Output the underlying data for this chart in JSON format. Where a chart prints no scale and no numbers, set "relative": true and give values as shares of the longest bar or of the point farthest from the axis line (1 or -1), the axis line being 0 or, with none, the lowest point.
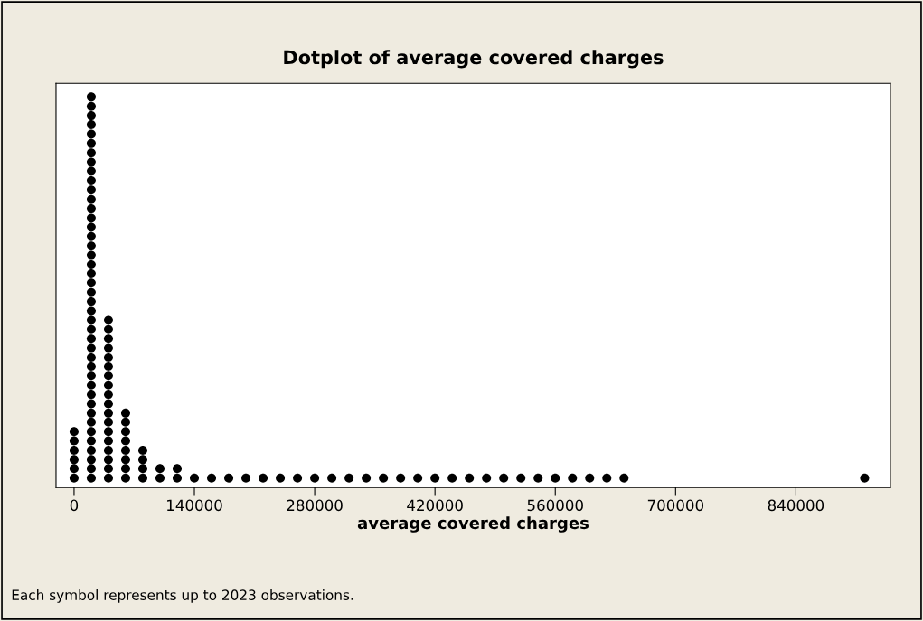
{
  "chart_data": {
    "type": "scatter",
    "title": "Dotplot of average covered charges",
    "xlabel": "average covered charges",
    "x": [
      0,
      0,
      0,
      0,
      0,
      0,
      20000,
      20000,
      20000,
      20000,
      20000,
      20000,
      20000,
      20000,
      20000,
      20000,
      20000,
      20000,
      20000,
      20000,
      20000,
      20000,
      20000,
      20000,
      20000,
      20000,
      20000,
      20000,
      20000,
      20000,
      20000,
      20000,
      20000,
      20000,
      20000,
      20000,
      20000,
      20000,
      20000,
      20000,
      20000,
      20000,
      20000,
      20000,
      20000,
      20000,
      20000,
      20000,
      40000,
      40000,
      40000,
      40000,
      40000,
      40000,
      40000,
      40000,
      40000,
      40000,
      40000,
      40000,
      40000,
      40000,
      40000,
      40000,
      40000,
      40000,
      60000,
      60000,
      60000,
      60000,
      60000,
      60000,
      60000,
      60000,
      80000,
      80000,
      80000,
      80000,
      100000,
      100000,
      120000,
      120000,
      140000,
      160000,
      180000,
      200000,
      220000,
      240000,
      260000,
      280000,
      300000,
      320000,
      340000,
      360000,
      380000,
      400000,
      420000,
      440000,
      460000,
      480000,
      500000,
      520000,
      540000,
      560000,
      580000,
      600000,
      620000,
      640000,
      920000
    ],
    "values": [
      0.024,
      0.048,
      0.071,
      0.095,
      0.119,
      0.143,
      0.024,
      0.048,
      0.071,
      0.095,
      0.119,
      0.143,
      0.167,
      0.19,
      0.214,
      0.238,
      0.262,
      0.286,
      0.31,
      0.333,
      0.357,
      0.381,
      0.405,
      0.429,
      0.452,
      0.476,
      0.5,
      0.524,
      0.548,
      0.571,
      0.595,
      0.619,
      0.643,
      0.667,
      0.69,
      0.714,
      0.738,
      0.762,
      0.786,
      0.81,
      0.833,
      0.857,
      0.881,
      0.905,
      0.929,
      0.952,
      0.976,
      1,
      0.024,
      0.048,
      0.071,
      0.095,
      0.119,
      0.143,
      0.167,
      0.19,
      0.214,
      0.238,
      0.262,
      0.286,
      0.31,
      0.333,
      0.357,
      0.381,
      0.405,
      0.429,
      0.024,
      0.048,
      0.071,
      0.095,
      0.119,
      0.143,
      0.167,
      0.19,
      0.024,
      0.048,
      0.071,
      0.095,
      0.024,
      0.048,
      0.024,
      0.048,
      0.024,
      0.024,
      0.024,
      0.024,
      0.024,
      0.024,
      0.024,
      0.024,
      0.024,
      0.024,
      0.024,
      0.024,
      0.024,
      0.024,
      0.024,
      0.024,
      0.024,
      0.024,
      0.024,
      0.024,
      0.024,
      0.024,
      0.024,
      0.024,
      0.024,
      0.024,
      0.024
    ],
    "relative": true,
    "color": "#000000",
    "marker": "circle",
    "xlim": [
      -21000,
      950000
    ],
    "xticks": [
      0,
      140000,
      280000,
      420000,
      560000,
      700000,
      840000
    ],
    "annotations": [
      "Each symbol represents up to 2023 observations."
    ]
  }
}
